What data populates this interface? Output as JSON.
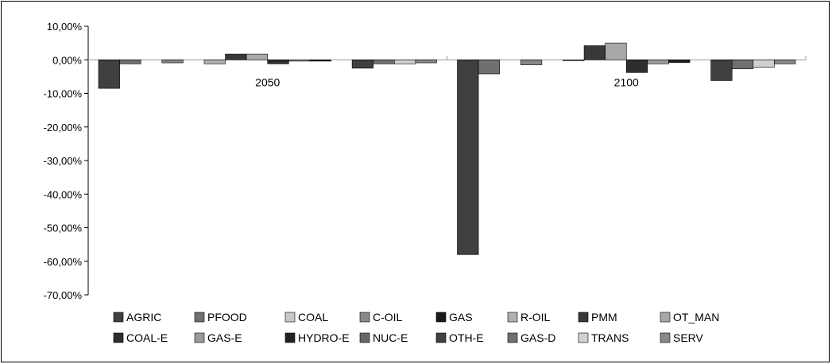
{
  "chart_data": {
    "type": "bar",
    "categories": [
      "2050",
      "2100"
    ],
    "ylim": [
      -70,
      10
    ],
    "yticks": [
      10,
      0,
      -10,
      -20,
      -30,
      -40,
      -50,
      -60,
      -70
    ],
    "ytick_labels": [
      "10,00%",
      "0,00%",
      "-10,00%",
      "-20,00%",
      "-30,00%",
      "-40,00%",
      "-50,00%",
      "-60,00%",
      "-70,00%"
    ],
    "grid": false,
    "legend_position": "bottom",
    "series": [
      {
        "name": "AGRIC",
        "color": "#404040",
        "values": [
          -8.5,
          -58.0
        ]
      },
      {
        "name": "PFOOD",
        "color": "#707070",
        "values": [
          -1.2,
          -4.2
        ]
      },
      {
        "name": "COAL",
        "color": "#c8c8c8",
        "values": [
          0.0,
          0.0
        ]
      },
      {
        "name": "C-OIL",
        "color": "#888888",
        "values": [
          -0.9,
          -1.5
        ]
      },
      {
        "name": "GAS",
        "color": "#1a1a1a",
        "values": [
          0.0,
          0.0
        ]
      },
      {
        "name": "R-OIL",
        "color": "#b0b0b0",
        "values": [
          -1.2,
          -0.3
        ]
      },
      {
        "name": "PMM",
        "color": "#383838",
        "values": [
          1.7,
          4.2
        ]
      },
      {
        "name": "OT_MAN",
        "color": "#a8a8a8",
        "values": [
          1.7,
          5.0
        ]
      },
      {
        "name": "COAL-E",
        "color": "#2e2e2e",
        "values": [
          -1.2,
          -3.8
        ]
      },
      {
        "name": "GAS-E",
        "color": "#9a9a9a",
        "values": [
          -0.4,
          -1.2
        ]
      },
      {
        "name": "HYDRO-E",
        "color": "#222222",
        "values": [
          -0.4,
          -0.8
        ]
      },
      {
        "name": "NUC-E",
        "color": "#686868",
        "values": [
          0.0,
          0.0
        ]
      },
      {
        "name": "OTH-E",
        "color": "#404040",
        "values": [
          -2.5,
          -6.2
        ]
      },
      {
        "name": "GAS-D",
        "color": "#707070",
        "values": [
          -1.2,
          -2.7
        ]
      },
      {
        "name": "TRANS",
        "color": "#d0d0d0",
        "values": [
          -1.2,
          -2.2
        ]
      },
      {
        "name": "SERV",
        "color": "#888888",
        "values": [
          -0.9,
          -1.2
        ]
      }
    ]
  }
}
